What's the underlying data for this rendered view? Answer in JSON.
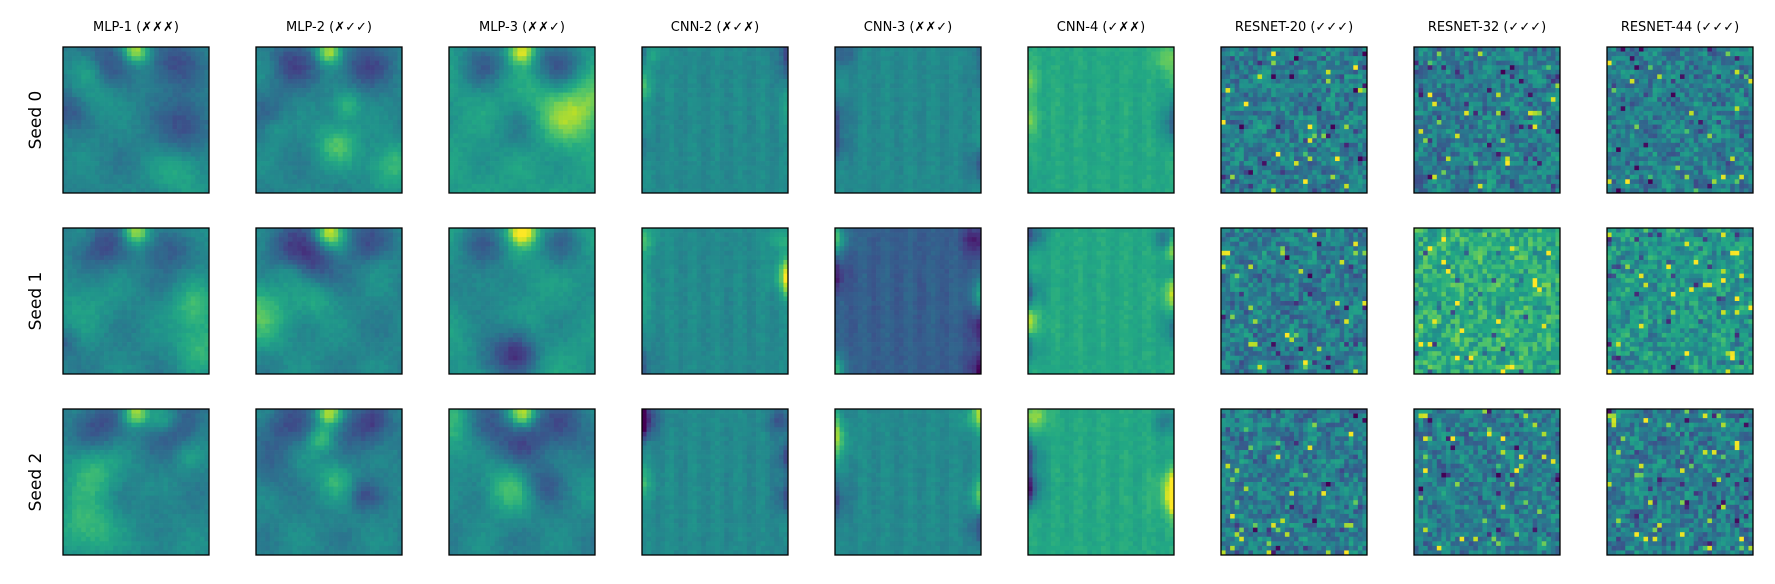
{
  "chart_data": {
    "type": "heatmap",
    "title": "",
    "columns": [
      "MLP-1 (✗✗✗)",
      "MLP-2 (✗✓✓)",
      "MLP-3 (✗✗✓)",
      "CNN-2 (✗✓✗)",
      "CNN-3 (✗✗✓)",
      "CNN-4 (✓✗✗)",
      "RESNET-20 (✓✓✓)",
      "RESNET-32 (✓✓✓)",
      "RESNET-44 (✓✓✓)"
    ],
    "rows": [
      "Seed 0",
      "Seed 1",
      "Seed 2"
    ],
    "colormap": "viridis",
    "grid_resolution": 32,
    "xticks": false,
    "yticks": false
  }
}
